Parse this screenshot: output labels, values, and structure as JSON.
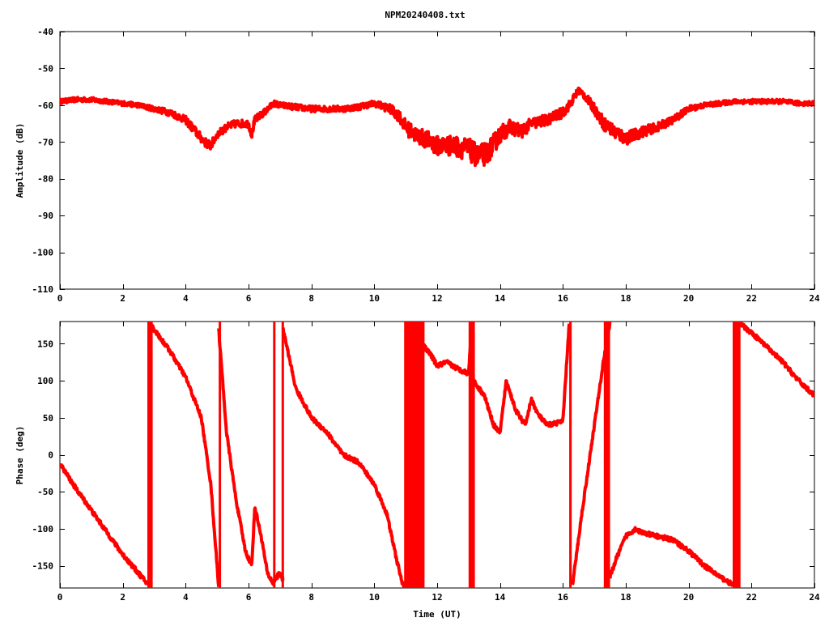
{
  "title": "NPM20240408.txt",
  "trace_color": "#ff0000",
  "chart_data": [
    {
      "type": "line",
      "ylabel": "Amplitude (dB)",
      "xlim": [
        0,
        24
      ],
      "ylim": [
        -110,
        -40
      ],
      "x_ticks": [
        0,
        2,
        4,
        6,
        8,
        10,
        12,
        14,
        16,
        18,
        20,
        22,
        24
      ],
      "y_ticks": [
        -40,
        -50,
        -60,
        -70,
        -80,
        -90,
        -100,
        -110
      ],
      "y_tick_labels": [
        "-40",
        "-50",
        "-60",
        "-70",
        "-80",
        "-90",
        "-100",
        "-110"
      ],
      "grid": false,
      "series": [
        {
          "x": [
            0,
            0.5,
            1,
            1.5,
            2,
            2.5,
            3,
            3.5,
            4,
            4.3,
            4.6,
            4.8,
            5,
            5.3,
            5.6,
            6,
            6.1,
            6.2,
            6.5,
            6.8,
            7,
            7.5,
            8,
            8.5,
            9,
            9.5,
            10,
            10.5,
            10.8,
            11,
            11.3,
            11.7,
            12,
            12.5,
            13,
            13.3,
            13.6,
            14,
            14.3,
            14.7,
            15,
            15.5,
            16,
            16.2,
            16.5,
            16.7,
            17,
            17.3,
            17.6,
            18,
            18.3,
            18.6,
            19,
            19.5,
            20,
            20.5,
            21,
            21.5,
            22,
            22.5,
            23,
            23.5,
            24
          ],
          "y": [
            -59,
            -58.5,
            -58.5,
            -59,
            -59.5,
            -60,
            -61,
            -62,
            -64,
            -67,
            -70,
            -71,
            -68,
            -66,
            -65,
            -65,
            -68,
            -64,
            -62,
            -59.5,
            -60,
            -60.5,
            -61,
            -61,
            -61,
            -60.5,
            -59.5,
            -61,
            -63,
            -66,
            -68,
            -69.5,
            -71,
            -71,
            -72,
            -74,
            -73,
            -68,
            -66,
            -67,
            -65,
            -64,
            -62,
            -60,
            -56,
            -57.5,
            -61,
            -65,
            -67,
            -69,
            -68,
            -67,
            -66,
            -64,
            -61,
            -60,
            -59.5,
            -59,
            -59,
            -59,
            -59,
            -59.5,
            -59.5
          ],
          "noise": [
            0.6,
            0.6,
            0.6,
            0.6,
            0.6,
            0.6,
            0.7,
            0.9,
            1.0,
            1.2,
            1.2,
            1.2,
            1.0,
            1.0,
            1.0,
            1.0,
            1.0,
            1.0,
            0.9,
            0.8,
            0.8,
            0.8,
            0.8,
            0.8,
            0.8,
            0.8,
            0.8,
            1.2,
            1.6,
            2.0,
            2.2,
            2.4,
            2.6,
            2.8,
            3.0,
            3.2,
            3.0,
            2.4,
            2.0,
            1.8,
            1.6,
            1.5,
            1.4,
            1.2,
            1.0,
            1.0,
            1.4,
            1.8,
            2.0,
            1.8,
            1.6,
            1.4,
            1.2,
            1.0,
            0.8,
            0.7,
            0.6,
            0.6,
            0.6,
            0.6,
            0.6,
            0.6,
            0.6
          ]
        }
      ]
    },
    {
      "type": "line",
      "ylabel": "Phase (deg)",
      "xlabel": "Time (UT)",
      "xlim": [
        0,
        24
      ],
      "ylim": [
        -180,
        180
      ],
      "x_ticks": [
        0,
        2,
        4,
        6,
        8,
        10,
        12,
        14,
        16,
        18,
        20,
        22,
        24
      ],
      "y_ticks": [
        150,
        100,
        50,
        0,
        -50,
        -100,
        -150
      ],
      "y_tick_labels": [
        "150",
        "100",
        "50",
        "0",
        "-50",
        "-100",
        "-150"
      ],
      "grid": false,
      "series": [
        {
          "segments": [
            {
              "x": [
                0,
                0.5,
                1,
                1.5,
                2,
                2.5,
                2.8
              ],
              "y": [
                -12,
                -45,
                -75,
                -105,
                -135,
                -160,
                -175
              ]
            },
            {
              "x": [
                2.85,
                3.5,
                4,
                4.5,
                4.8,
                5.05
              ],
              "y": [
                178,
                140,
                105,
                50,
                -40,
                -178
              ]
            },
            {
              "x": [
                5.05,
                5.3,
                5.6,
                5.9,
                6.1,
                6.2,
                6.4,
                6.6,
                6.8
              ],
              "y": [
                170,
                30,
                -60,
                -130,
                -150,
                -70,
                -110,
                -160,
                -175
              ]
            },
            {
              "x": [
                6.8,
                7.0,
                7.1
              ],
              "y": [
                -170,
                -160,
                -170
              ]
            },
            {
              "x": [
                7.1,
                7.5,
                8,
                8.5,
                9,
                9.5,
                10,
                10.4,
                10.7,
                10.9,
                11.0
              ],
              "y": [
                170,
                90,
                50,
                30,
                0,
                -10,
                -40,
                -80,
                -140,
                -175,
                -178
              ]
            },
            {
              "x": [
                11.0,
                11.2,
                11.5,
                11.8,
                12,
                12.3,
                12.7,
                13,
                13.1
              ],
              "y": [
                178,
                175,
                150,
                135,
                120,
                125,
                115,
                110,
                178
              ]
            },
            {
              "x": [
                13.15,
                13.5,
                13.8,
                14,
                14.2,
                14.5,
                14.8,
                15,
                15.2,
                15.5,
                16,
                16.2
              ],
              "y": [
                100,
                80,
                40,
                30,
                100,
                60,
                40,
                75,
                55,
                40,
                45,
                178
              ]
            },
            {
              "x": [
                16.3,
                16.6,
                17,
                17.3,
                17.5
              ],
              "y": [
                -178,
                -80,
                40,
                130,
                178
              ]
            },
            {
              "x": [
                17.5,
                17.7,
                18,
                18.3,
                18.5,
                19,
                19.5,
                20,
                20.5,
                21,
                21.3,
                21.5
              ],
              "y": [
                -165,
                -140,
                -110,
                -100,
                -105,
                -110,
                -115,
                -130,
                -150,
                -165,
                -173,
                -178
              ]
            },
            {
              "x": [
                21.6,
                22,
                22.5,
                23,
                23.5,
                24
              ],
              "y": [
                178,
                165,
                145,
                125,
                100,
                80
              ]
            }
          ],
          "bands": [
            [
              2.78,
              2.95
            ],
            [
              5.05,
              5.1
            ],
            [
              6.78,
              6.82
            ],
            [
              7.05,
              7.12
            ],
            [
              10.95,
              11.6
            ],
            [
              13.0,
              13.2
            ],
            [
              16.2,
              16.28
            ],
            [
              17.3,
              17.5
            ],
            [
              21.4,
              21.65
            ]
          ],
          "noise": 3
        }
      ]
    }
  ]
}
